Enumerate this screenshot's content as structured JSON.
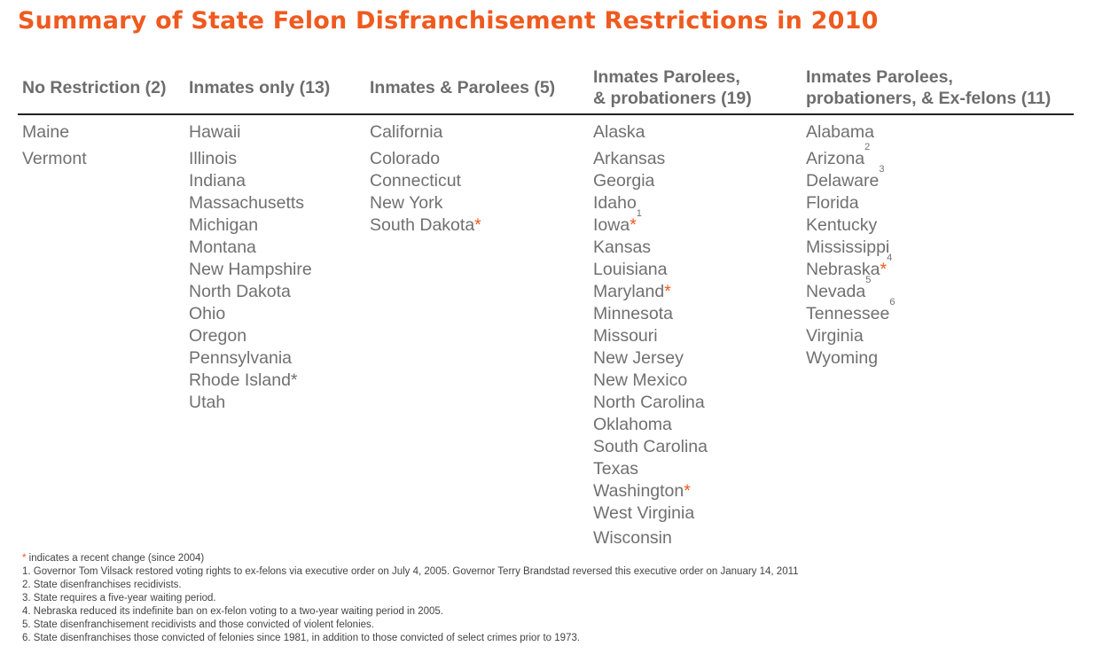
{
  "title": "Summary of State Felon Disfranchisement Restrictions in 2010",
  "accent_color": "#EF5A1F",
  "columns": [
    {
      "header_lines": [
        "No Restriction (2)"
      ],
      "states": [
        {
          "name": "Maine"
        },
        {
          "name": "Vermont"
        }
      ]
    },
    {
      "header_lines": [
        "Inmates only (13)"
      ],
      "states": [
        {
          "name": "Hawaii"
        },
        {
          "name": "Illinois"
        },
        {
          "name": "Indiana"
        },
        {
          "name": "Massachusetts"
        },
        {
          "name": "Michigan"
        },
        {
          "name": "Montana"
        },
        {
          "name": "New Hampshire"
        },
        {
          "name": "North Dakota"
        },
        {
          "name": "Ohio"
        },
        {
          "name": "Oregon"
        },
        {
          "name": "Pennsylvania"
        },
        {
          "name": "Rhode Island*"
        },
        {
          "name": "Utah"
        }
      ]
    },
    {
      "header_lines": [
        "Inmates & Parolees (5)"
      ],
      "states": [
        {
          "name": "California"
        },
        {
          "name": "Colorado"
        },
        {
          "name": "Connecticut"
        },
        {
          "name": "New York"
        },
        {
          "name": "South Dakota",
          "mark": "*"
        }
      ]
    },
    {
      "header_lines": [
        "Inmates Parolees,",
        "& probationers (19)"
      ],
      "states": [
        {
          "name": "Alaska"
        },
        {
          "name": "Arkansas"
        },
        {
          "name": "Georgia"
        },
        {
          "name": "Idaho"
        },
        {
          "name": "Iowa",
          "mark": "*",
          "note": "1"
        },
        {
          "name": "Kansas"
        },
        {
          "name": "Louisiana"
        },
        {
          "name": "Maryland",
          "mark": "*"
        },
        {
          "name": "Minnesota"
        },
        {
          "name": "Missouri"
        },
        {
          "name": "New Jersey"
        },
        {
          "name": "New Mexico"
        },
        {
          "name": "North Carolina"
        },
        {
          "name": "Oklahoma"
        },
        {
          "name": "South Carolina"
        },
        {
          "name": "Texas"
        },
        {
          "name": "Washington",
          "mark": "*"
        },
        {
          "name": "West Virginia"
        },
        {
          "name": "Wisconsin"
        }
      ]
    },
    {
      "header_lines": [
        "Inmates Parolees,",
        "probationers, & Ex-felons (11)"
      ],
      "states": [
        {
          "name": "Alabama"
        },
        {
          "name": "Arizona",
          "note": "2"
        },
        {
          "name": "Delaware",
          "note": "3"
        },
        {
          "name": "Florida"
        },
        {
          "name": "Kentucky"
        },
        {
          "name": "Mississippi"
        },
        {
          "name": "Nebraska",
          "mark": "*",
          "note": "4"
        },
        {
          "name": "Nevada",
          "note": "5"
        },
        {
          "name": "Tennessee",
          "note": "6"
        },
        {
          "name": "Virginia"
        },
        {
          "name": "Wyoming"
        }
      ]
    }
  ],
  "legend": {
    "mark": "*",
    "text": " indicates a recent change (since 2004)"
  },
  "footnotes": [
    "1. Governor Tom Vilsack restored voting rights to ex-felons via executive order on July 4, 2005. Governor Terry Brandstad reversed this executive order on January 14, 2011",
    "2. State disenfranchises recidivists.",
    "3. State requires a five-year waiting period.",
    "4. Nebraska reduced its indefinite ban on ex-felon voting to a two-year waiting period in 2005.",
    "5. State disenfranchisement recidivists and those convicted of violent felonies.",
    "6. State disenfranchises those convicted of felonies since 1981, in addition to those convicted of select crimes prior to 1973."
  ]
}
